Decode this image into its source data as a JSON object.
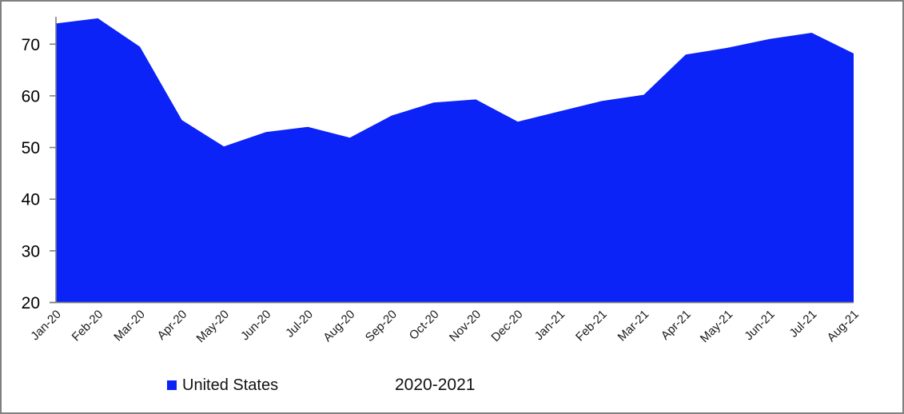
{
  "frame": {
    "border_color": "#808080",
    "background": "#ffffff"
  },
  "chart_data": {
    "type": "area",
    "title": "",
    "xlabel": "",
    "ylabel": "",
    "categories": [
      "Jan-20",
      "Feb-20",
      "Mar-20",
      "Apr-20",
      "May-20",
      "Jun-20",
      "Jul-20",
      "Aug-20",
      "Sep-20",
      "Oct-20",
      "Nov-20",
      "Dec-20",
      "Jan-21",
      "Feb-21",
      "Mar-21",
      "Apr-21",
      "May-21",
      "Jun-21",
      "Jul-21",
      "Aug-21"
    ],
    "series": [
      {
        "name": "United States",
        "color": "#0b23f6",
        "values": [
          74,
          75,
          69.5,
          55.3,
          50.2,
          53,
          54,
          51.9,
          56.2,
          58.7,
          59.3,
          55,
          57,
          59,
          60.2,
          68,
          69.3,
          71,
          72.2,
          68.2
        ]
      }
    ],
    "ylim": [
      20,
      75.3
    ],
    "yticks": [
      20,
      30,
      40,
      50,
      60,
      70
    ],
    "grid": false,
    "axis_color": "#808080",
    "tick_label_color": "#1a1a1a",
    "legend": {
      "position": "bottom",
      "entries": [
        {
          "label": "United States",
          "color": "#0b23f6"
        }
      ],
      "annotation": "2020-2021"
    }
  }
}
